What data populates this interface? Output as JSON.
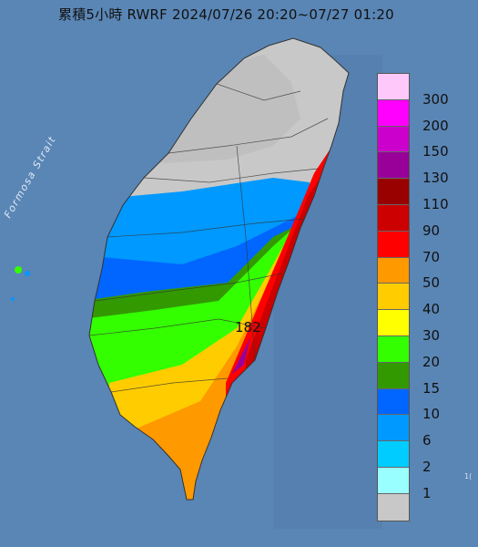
{
  "header": {
    "title": "累積5小時 RWRF 2024/07/26 20:20~07/27 01:20"
  },
  "map": {
    "sea_label": "Formosa Strait",
    "max_label": "182",
    "corner_label": "1("
  },
  "legend": {
    "levels": [
      {
        "label": "300",
        "color": "#ffc8fa"
      },
      {
        "label": "200",
        "color": "#ff00ff"
      },
      {
        "label": "150",
        "color": "#cc00cc"
      },
      {
        "label": "130",
        "color": "#990099"
      },
      {
        "label": "110",
        "color": "#990000"
      },
      {
        "label": "90",
        "color": "#cc0000"
      },
      {
        "label": "70",
        "color": "#ff0000"
      },
      {
        "label": "50",
        "color": "#ff9900"
      },
      {
        "label": "40",
        "color": "#ffcc00"
      },
      {
        "label": "30",
        "color": "#ffff00"
      },
      {
        "label": "20",
        "color": "#33ff00"
      },
      {
        "label": "15",
        "color": "#339900"
      },
      {
        "label": "10",
        "color": "#0066ff"
      },
      {
        "label": "6",
        "color": "#0099ff"
      },
      {
        "label": "2",
        "color": "#00ccff"
      },
      {
        "label": "1",
        "color": "#99ffff"
      },
      {
        "label": "",
        "color": "#c8c8c8"
      }
    ]
  }
}
